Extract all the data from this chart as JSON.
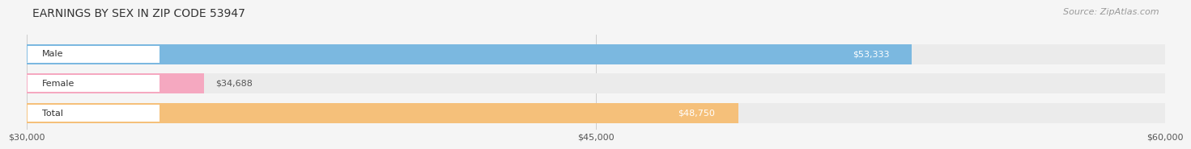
{
  "title": "EARNINGS BY SEX IN ZIP CODE 53947",
  "source": "Source: ZipAtlas.com",
  "categories": [
    "Male",
    "Female",
    "Total"
  ],
  "values": [
    53333,
    34688,
    48750
  ],
  "bar_colors": [
    "#7bb8e0",
    "#f5a8c0",
    "#f5c07a"
  ],
  "label_colors": [
    "#ffffff",
    "#555555",
    "#ffffff"
  ],
  "x_min": 30000,
  "x_max": 60000,
  "xticks": [
    30000,
    45000,
    60000
  ],
  "xtick_labels": [
    "$30,000",
    "$45,000",
    "$60,000"
  ],
  "value_labels": [
    "$53,333",
    "$34,688",
    "$48,750"
  ],
  "background_color": "#f5f5f5",
  "bar_background_color": "#ebebeb",
  "title_fontsize": 10,
  "source_fontsize": 8,
  "bar_label_fontsize": 8,
  "tick_fontsize": 8,
  "category_fontsize": 8
}
